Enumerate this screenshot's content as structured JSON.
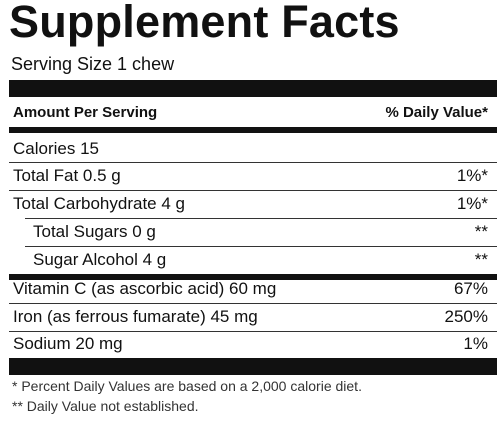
{
  "title": "Supplement Facts",
  "serving_size": "Serving Size 1 chew",
  "header": {
    "amount": "Amount Per Serving",
    "daily_value": "% Daily Value*"
  },
  "nutrients": [
    {
      "name": "Calories  15",
      "dv": ""
    },
    {
      "name": "Total Fat  0.5 g",
      "dv": "1%*"
    },
    {
      "name": "Total Carbohydrate  4 g",
      "dv": "1%*"
    },
    {
      "name": "Total Sugars  0 g",
      "dv": "**"
    },
    {
      "name": "Sugar Alcohol  4 g",
      "dv": "**"
    },
    {
      "name": "Vitamin C (as ascorbic acid)  60 mg",
      "dv": "67%"
    },
    {
      "name": "Iron (as ferrous fumarate)  45 mg",
      "dv": "250%"
    },
    {
      "name": "Sodium  20 mg",
      "dv": "1%"
    }
  ],
  "footnotes": [
    "* Percent Daily Values are based on a 2,000 calorie diet.",
    "** Daily Value not established."
  ]
}
